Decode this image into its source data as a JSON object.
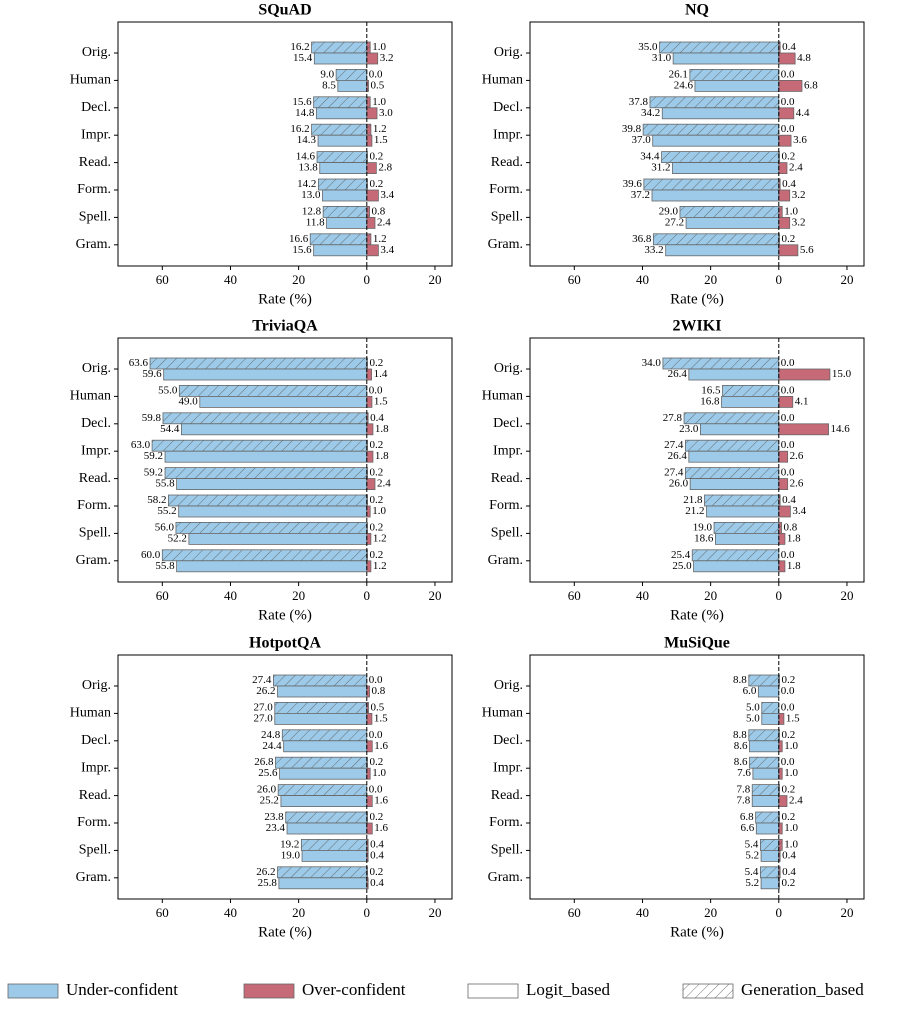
{
  "chart_data": [
    {
      "type": "bar",
      "orientation": "horizontal",
      "title": "SQuAD",
      "xlabel": "Rate (%)",
      "categories": [
        "Orig.",
        "Human",
        "Decl.",
        "Impr.",
        "Read.",
        "Form.",
        "Spell.",
        "Gram."
      ],
      "xlim": [
        -73,
        25
      ],
      "xticks": [
        {
          "value": -60,
          "label": "60"
        },
        {
          "value": -40,
          "label": "40"
        },
        {
          "value": -20,
          "label": "20"
        },
        0,
        20
      ],
      "series": [
        {
          "color": "#9ccae8",
          "hatch": true,
          "values": [
            -16.2,
            -9.0,
            -15.6,
            -16.2,
            -14.6,
            -14.2,
            -12.8,
            -16.6
          ],
          "value_labels": [
            "16.2",
            "9.0",
            "15.6",
            "16.2",
            "14.6",
            "14.2",
            "12.8",
            "16.6"
          ]
        },
        {
          "color": "#9ccae8",
          "hatch": false,
          "values": [
            -15.4,
            -8.5,
            -14.8,
            -14.3,
            -13.8,
            -13.0,
            -11.8,
            -15.6
          ],
          "value_labels": [
            "15.4",
            "8.5",
            "14.8",
            "14.3",
            "13.8",
            "13.0",
            "11.8",
            "15.6"
          ]
        },
        {
          "color": "#c66a78",
          "hatch": true,
          "values": [
            1.0,
            0.0,
            1.0,
            1.2,
            0.2,
            0.2,
            0.8,
            1.2
          ],
          "value_labels": [
            "1.0",
            "0.0",
            "1.0",
            "1.2",
            "0.2",
            "0.2",
            "0.8",
            "1.2"
          ]
        },
        {
          "color": "#c66a78",
          "hatch": false,
          "values": [
            3.2,
            0.5,
            3.0,
            1.5,
            2.8,
            3.4,
            2.4,
            3.4
          ],
          "value_labels": [
            "3.2",
            "0.5",
            "3.0",
            "1.5",
            "2.8",
            "3.4",
            "2.4",
            "3.4"
          ]
        }
      ]
    },
    {
      "type": "bar",
      "orientation": "horizontal",
      "title": "NQ",
      "xlabel": "Rate (%)",
      "categories": [
        "Orig.",
        "Human",
        "Decl.",
        "Impr.",
        "Read.",
        "Form.",
        "Spell.",
        "Gram."
      ],
      "xlim": [
        -73,
        25
      ],
      "xticks": [
        {
          "value": -60,
          "label": "60"
        },
        {
          "value": -40,
          "label": "40"
        },
        {
          "value": -20,
          "label": "20"
        },
        0,
        20
      ],
      "series": [
        {
          "color": "#9ccae8",
          "hatch": true,
          "values": [
            -35.0,
            -26.1,
            -37.8,
            -39.8,
            -34.4,
            -39.6,
            -29.0,
            -36.8
          ],
          "value_labels": [
            "35.0",
            "26.1",
            "37.8",
            "39.8",
            "34.4",
            "39.6",
            "29.0",
            "36.8"
          ]
        },
        {
          "color": "#9ccae8",
          "hatch": false,
          "values": [
            -31.0,
            -24.6,
            -34.2,
            -37.0,
            -31.2,
            -37.2,
            -27.2,
            -33.2
          ],
          "value_labels": [
            "31.0",
            "24.6",
            "34.2",
            "37.0",
            "31.2",
            "37.2",
            "27.2",
            "33.2"
          ]
        },
        {
          "color": "#c66a78",
          "hatch": true,
          "values": [
            0.4,
            0.0,
            0.0,
            0.0,
            0.2,
            0.4,
            1.0,
            0.2
          ],
          "value_labels": [
            "0.4",
            "0.0",
            "0.0",
            "0.0",
            "0.2",
            "0.4",
            "1.0",
            "0.2"
          ]
        },
        {
          "color": "#c66a78",
          "hatch": false,
          "values": [
            4.8,
            6.8,
            4.4,
            3.6,
            2.4,
            3.2,
            3.2,
            5.6
          ],
          "value_labels": [
            "4.8",
            "6.8",
            "4.4",
            "3.6",
            "2.4",
            "3.2",
            "3.2",
            "5.6"
          ]
        }
      ]
    },
    {
      "type": "bar",
      "orientation": "horizontal",
      "title": "TriviaQA",
      "xlabel": "Rate (%)",
      "categories": [
        "Orig.",
        "Human",
        "Decl.",
        "Impr.",
        "Read.",
        "Form.",
        "Spell.",
        "Gram."
      ],
      "xlim": [
        -73,
        25
      ],
      "xticks": [
        {
          "value": -60,
          "label": "60"
        },
        {
          "value": -40,
          "label": "40"
        },
        {
          "value": -20,
          "label": "20"
        },
        0,
        20
      ],
      "series": [
        {
          "color": "#9ccae8",
          "hatch": true,
          "values": [
            -63.6,
            -55.0,
            -59.8,
            -63.0,
            -59.2,
            -58.2,
            -56.0,
            -60.0
          ],
          "value_labels": [
            "63.6",
            "55.0",
            "59.8",
            "63.0",
            "59.2",
            "58.2",
            "56.0",
            "60.0"
          ]
        },
        {
          "color": "#9ccae8",
          "hatch": false,
          "values": [
            -59.6,
            -49.0,
            -54.4,
            -59.2,
            -55.8,
            -55.2,
            -52.2,
            -55.8
          ],
          "value_labels": [
            "59.6",
            "49.0",
            "54.4",
            "59.2",
            "55.8",
            "55.2",
            "52.2",
            "55.8"
          ]
        },
        {
          "color": "#c66a78",
          "hatch": true,
          "values": [
            0.2,
            0.0,
            0.4,
            0.2,
            0.2,
            0.2,
            0.2,
            0.2
          ],
          "value_labels": [
            "0.2",
            "0.0",
            "0.4",
            "0.2",
            "0.2",
            "0.2",
            "0.2",
            "0.2"
          ]
        },
        {
          "color": "#c66a78",
          "hatch": false,
          "values": [
            1.4,
            1.5,
            1.8,
            1.8,
            2.4,
            1.0,
            1.2,
            1.2
          ],
          "value_labels": [
            "1.4",
            "1.5",
            "1.8",
            "1.8",
            "2.4",
            "1.0",
            "1.2",
            "1.2"
          ]
        }
      ]
    },
    {
      "type": "bar",
      "orientation": "horizontal",
      "title": "2WIKI",
      "xlabel": "Rate (%)",
      "categories": [
        "Orig.",
        "Human",
        "Decl.",
        "Impr.",
        "Read.",
        "Form.",
        "Spell.",
        "Gram."
      ],
      "xlim": [
        -73,
        25
      ],
      "xticks": [
        {
          "value": -60,
          "label": "60"
        },
        {
          "value": -40,
          "label": "40"
        },
        {
          "value": -20,
          "label": "20"
        },
        0,
        20
      ],
      "series": [
        {
          "color": "#9ccae8",
          "hatch": true,
          "values": [
            -34.0,
            -16.5,
            -27.8,
            -27.4,
            -27.4,
            -21.8,
            -19.0,
            -25.4
          ],
          "value_labels": [
            "34.0",
            "16.5",
            "27.8",
            "27.4",
            "27.4",
            "21.8",
            "19.0",
            "25.4"
          ]
        },
        {
          "color": "#9ccae8",
          "hatch": false,
          "values": [
            -26.4,
            -16.8,
            -23.0,
            -26.4,
            -26.0,
            -21.2,
            -18.6,
            -25.0
          ],
          "value_labels": [
            "26.4",
            "16.8",
            "23.0",
            "26.4",
            "26.0",
            "21.2",
            "18.6",
            "25.0"
          ]
        },
        {
          "color": "#c66a78",
          "hatch": true,
          "values": [
            0.0,
            0.0,
            0.0,
            0.0,
            0.0,
            0.4,
            0.8,
            0.0
          ],
          "value_labels": [
            "0.0",
            "0.0",
            "0.0",
            "0.0",
            "0.0",
            "0.4",
            "0.8",
            "0.0"
          ]
        },
        {
          "color": "#c66a78",
          "hatch": false,
          "values": [
            15.0,
            4.1,
            14.6,
            2.6,
            2.6,
            3.4,
            1.8,
            1.8
          ],
          "value_labels": [
            "15.0",
            "4.1",
            "14.6",
            "2.6",
            "2.6",
            "3.4",
            "1.8",
            "1.8"
          ]
        }
      ]
    },
    {
      "type": "bar",
      "orientation": "horizontal",
      "title": "HotpotQA",
      "xlabel": "Rate (%)",
      "categories": [
        "Orig.",
        "Human",
        "Decl.",
        "Impr.",
        "Read.",
        "Form.",
        "Spell.",
        "Gram."
      ],
      "xlim": [
        -73,
        25
      ],
      "xticks": [
        {
          "value": -60,
          "label": "60"
        },
        {
          "value": -40,
          "label": "40"
        },
        {
          "value": -20,
          "label": "20"
        },
        0,
        20
      ],
      "series": [
        {
          "color": "#9ccae8",
          "hatch": true,
          "values": [
            -27.4,
            -27.0,
            -24.8,
            -26.8,
            -26.0,
            -23.8,
            -19.2,
            -26.2
          ],
          "value_labels": [
            "27.4",
            "27.0",
            "24.8",
            "26.8",
            "26.0",
            "23.8",
            "19.2",
            "26.2"
          ]
        },
        {
          "color": "#9ccae8",
          "hatch": false,
          "values": [
            -26.2,
            -27.0,
            -24.4,
            -25.6,
            -25.2,
            -23.4,
            -19.0,
            -25.8
          ],
          "value_labels": [
            "26.2",
            "27.0",
            "24.4",
            "25.6",
            "25.2",
            "23.4",
            "19.0",
            "25.8"
          ]
        },
        {
          "color": "#c66a78",
          "hatch": true,
          "values": [
            0.0,
            0.5,
            0.0,
            0.2,
            0.0,
            0.2,
            0.4,
            0.2
          ],
          "value_labels": [
            "0.0",
            "0.5",
            "0.0",
            "0.2",
            "0.0",
            "0.2",
            "0.4",
            "0.2"
          ]
        },
        {
          "color": "#c66a78",
          "hatch": false,
          "values": [
            0.8,
            1.5,
            1.6,
            1.0,
            1.6,
            1.6,
            0.4,
            0.4
          ],
          "value_labels": [
            "0.8",
            "1.5",
            "1.6",
            "1.0",
            "1.6",
            "1.6",
            "0.4",
            "0.4"
          ]
        }
      ]
    },
    {
      "type": "bar",
      "orientation": "horizontal",
      "title": "MuSiQue",
      "xlabel": "Rate (%)",
      "categories": [
        "Orig.",
        "Human",
        "Decl.",
        "Impr.",
        "Read.",
        "Form.",
        "Spell.",
        "Gram."
      ],
      "xlim": [
        -73,
        25
      ],
      "xticks": [
        {
          "value": -60,
          "label": "60"
        },
        {
          "value": -40,
          "label": "40"
        },
        {
          "value": -20,
          "label": "20"
        },
        0,
        20
      ],
      "series": [
        {
          "color": "#9ccae8",
          "hatch": true,
          "values": [
            -8.8,
            -5.0,
            -8.8,
            -8.6,
            -7.8,
            -6.8,
            -5.4,
            -5.4
          ],
          "value_labels": [
            "8.8",
            "5.0",
            "8.8",
            "8.6",
            "7.8",
            "6.8",
            "5.4",
            "5.4"
          ]
        },
        {
          "color": "#9ccae8",
          "hatch": false,
          "values": [
            -6.0,
            -5.0,
            -8.6,
            -7.6,
            -7.8,
            -6.6,
            -5.2,
            -5.2
          ],
          "value_labels": [
            "6.0",
            "5.0",
            "8.6",
            "7.6",
            "7.8",
            "6.6",
            "5.2",
            "5.2"
          ]
        },
        {
          "color": "#c66a78",
          "hatch": true,
          "values": [
            0.2,
            0.0,
            0.2,
            0.0,
            0.2,
            0.2,
            1.0,
            0.4
          ],
          "value_labels": [
            "0.2",
            "0.0",
            "0.2",
            "0.0",
            "0.2",
            "0.2",
            "1.0",
            "0.4"
          ]
        },
        {
          "color": "#c66a78",
          "hatch": false,
          "values": [
            0.0,
            1.5,
            1.0,
            1.0,
            2.4,
            1.0,
            0.4,
            0.2
          ],
          "value_labels": [
            "0.0",
            "1.5",
            "1.0",
            "1.0",
            "2.4",
            "1.0",
            "0.4",
            "0.2"
          ]
        }
      ]
    }
  ],
  "legend": {
    "position": "bottom",
    "entries": [
      {
        "name": "Under-confident",
        "color": "#9ccae8",
        "hatch": false
      },
      {
        "name": "Over-confident",
        "color": "#c66a78",
        "hatch": false
      },
      {
        "name": "Logit_based",
        "color": "#ffffff",
        "hatch": false
      },
      {
        "name": "Generation_based",
        "color": "#ffffff",
        "hatch": true
      }
    ]
  }
}
